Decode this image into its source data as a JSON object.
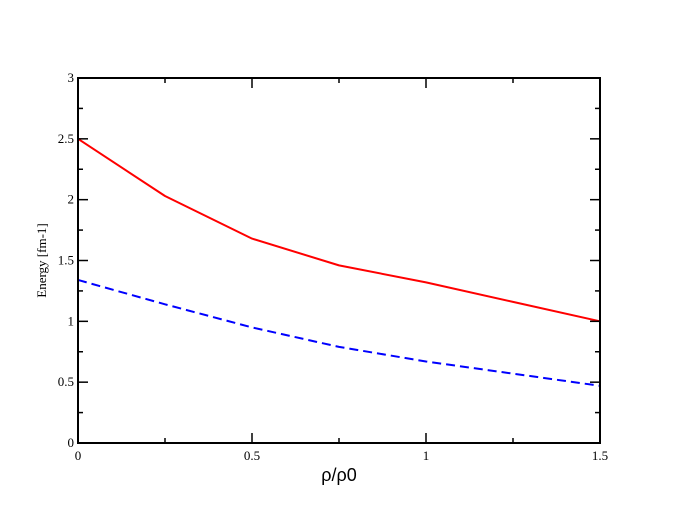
{
  "chart_data": {
    "type": "line",
    "title": "",
    "xlabel": "ρ/ρ0",
    "ylabel": "Energy [fm-1]",
    "xlim": [
      0,
      1.5
    ],
    "ylim": [
      0,
      3
    ],
    "xticks": [
      0,
      0.5,
      1,
      1.5
    ],
    "xtick_labels": [
      "0",
      "0.5",
      "1",
      "1.5"
    ],
    "yticks": [
      0,
      0.5,
      1,
      1.5,
      2,
      2.5,
      3
    ],
    "ytick_labels": [
      "0",
      "0.5",
      "1",
      "1.5",
      "2",
      "2.5",
      "3"
    ],
    "grid": false,
    "legend": "none",
    "series": [
      {
        "color": "#ff0000",
        "dash": "solid",
        "x": [
          0,
          0.25,
          0.5,
          0.75,
          1.0,
          1.25,
          1.5
        ],
        "y": [
          2.5,
          2.03,
          1.68,
          1.46,
          1.32,
          1.16,
          1.0
        ]
      },
      {
        "color": "#0000ff",
        "dash": "dashed",
        "x": [
          0,
          0.25,
          0.5,
          0.75,
          1.0,
          1.25,
          1.5
        ],
        "y": [
          1.34,
          1.14,
          0.95,
          0.79,
          0.67,
          0.57,
          0.47
        ]
      }
    ]
  }
}
